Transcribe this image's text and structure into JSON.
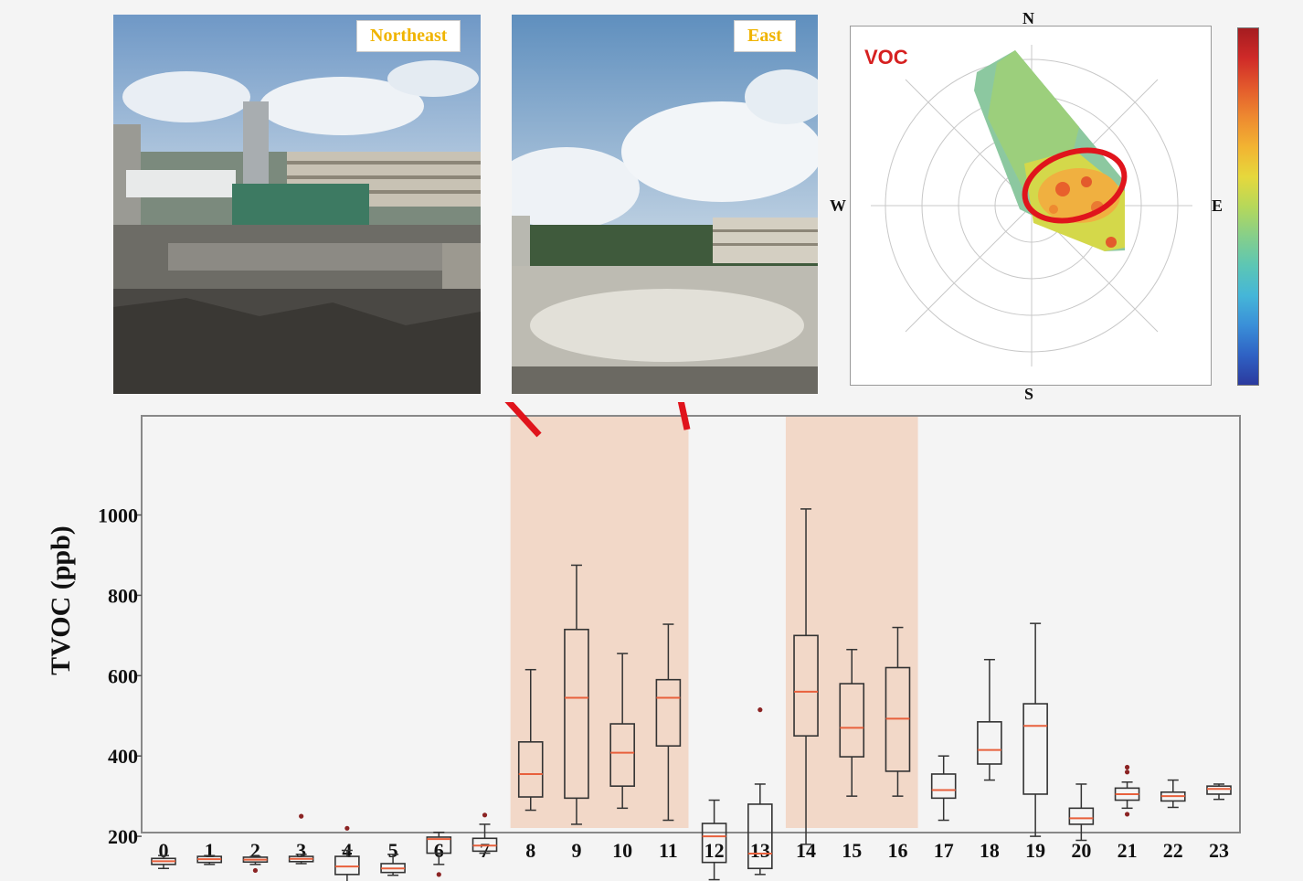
{
  "photos": [
    {
      "label": "Northeast"
    },
    {
      "label": "East"
    }
  ],
  "rose": {
    "title": "VOC",
    "compass": {
      "n": "N",
      "s": "S",
      "e": "E",
      "w": "W"
    },
    "colorbar_colors": [
      "#2b3a9e",
      "#2f62c4",
      "#3a8fd8",
      "#45b6d8",
      "#5cc6b5",
      "#86cf8a",
      "#b6d85a",
      "#e6d83c",
      "#f2b432",
      "#ee8a30",
      "#e35a2c",
      "#cf2a28",
      "#a51c20"
    ],
    "highlight_color": "#e0141c"
  },
  "chart_data": {
    "type": "box",
    "ylabel": "TVOC (ppb)",
    "yticks": [
      200,
      400,
      600,
      800,
      1000
    ],
    "ylim": [
      50,
      1080
    ],
    "categories": [
      "0",
      "1",
      "2",
      "3",
      "4",
      "5",
      "6",
      "7",
      "8",
      "9",
      "10",
      "11",
      "12",
      "13",
      "14",
      "15",
      "16",
      "17",
      "18",
      "19",
      "20",
      "21",
      "22",
      "23"
    ],
    "highlight_ranges": [
      [
        "8",
        "11"
      ],
      [
        "14",
        "16"
      ]
    ],
    "highlight_color": "#f2d8c8",
    "median_color": "#e8603c",
    "boxes": [
      {
        "hour": "0",
        "whislo": 120,
        "q1": 130,
        "med": 138,
        "q3": 145,
        "whishi": 152,
        "fliers": []
      },
      {
        "hour": "1",
        "whislo": 130,
        "q1": 135,
        "med": 143,
        "q3": 150,
        "whishi": 152,
        "fliers": []
      },
      {
        "hour": "2",
        "whislo": 130,
        "q1": 136,
        "med": 142,
        "q3": 148,
        "whishi": 150,
        "fliers": [
          115
        ]
      },
      {
        "hour": "3",
        "whislo": 132,
        "q1": 137,
        "med": 144,
        "q3": 150,
        "whishi": 155,
        "fliers": [
          250
        ]
      },
      {
        "hour": "4",
        "whislo": 78,
        "q1": 105,
        "med": 125,
        "q3": 150,
        "whishi": 165,
        "fliers": [
          220
        ]
      },
      {
        "hour": "5",
        "whislo": 103,
        "q1": 110,
        "med": 120,
        "q3": 132,
        "whishi": 155,
        "fliers": [
          78
        ]
      },
      {
        "hour": "6",
        "whislo": 130,
        "q1": 158,
        "med": 193,
        "q3": 198,
        "whishi": 210,
        "fliers": [
          105
        ]
      },
      {
        "hour": "7",
        "whislo": 158,
        "q1": 163,
        "med": 177,
        "q3": 195,
        "whishi": 230,
        "fliers": [
          253
        ]
      },
      {
        "hour": "8",
        "whislo": 265,
        "q1": 298,
        "med": 355,
        "q3": 435,
        "whishi": 615,
        "fliers": []
      },
      {
        "hour": "9",
        "whislo": 230,
        "q1": 295,
        "med": 545,
        "q3": 715,
        "whishi": 875,
        "fliers": []
      },
      {
        "hour": "10",
        "whislo": 270,
        "q1": 325,
        "med": 408,
        "q3": 480,
        "whishi": 655,
        "fliers": []
      },
      {
        "hour": "11",
        "whislo": 240,
        "q1": 425,
        "med": 545,
        "q3": 590,
        "whishi": 728,
        "fliers": []
      },
      {
        "hour": "12",
        "whislo": 92,
        "q1": 135,
        "med": 200,
        "q3": 232,
        "whishi": 290,
        "fliers": []
      },
      {
        "hour": "13",
        "whislo": 105,
        "q1": 120,
        "med": 157,
        "q3": 280,
        "whishi": 330,
        "fliers": [
          515
        ]
      },
      {
        "hour": "14",
        "whislo": 180,
        "q1": 450,
        "med": 560,
        "q3": 700,
        "whishi": 1015,
        "fliers": []
      },
      {
        "hour": "15",
        "whislo": 300,
        "q1": 398,
        "med": 470,
        "q3": 580,
        "whishi": 665,
        "fliers": []
      },
      {
        "hour": "16",
        "whislo": 300,
        "q1": 362,
        "med": 493,
        "q3": 620,
        "whishi": 720,
        "fliers": []
      },
      {
        "hour": "17",
        "whislo": 240,
        "q1": 295,
        "med": 315,
        "q3": 355,
        "whishi": 400,
        "fliers": []
      },
      {
        "hour": "18",
        "whislo": 340,
        "q1": 380,
        "med": 415,
        "q3": 485,
        "whishi": 640,
        "fliers": []
      },
      {
        "hour": "19",
        "whislo": 200,
        "q1": 305,
        "med": 475,
        "q3": 530,
        "whishi": 730,
        "fliers": []
      },
      {
        "hour": "20",
        "whislo": 190,
        "q1": 230,
        "med": 245,
        "q3": 270,
        "whishi": 330,
        "fliers": []
      },
      {
        "hour": "21",
        "whislo": 270,
        "q1": 290,
        "med": 305,
        "q3": 320,
        "whishi": 335,
        "fliers": [
          255,
          360,
          372
        ]
      },
      {
        "hour": "22",
        "whislo": 272,
        "q1": 288,
        "med": 300,
        "q3": 310,
        "whishi": 340,
        "fliers": []
      },
      {
        "hour": "23",
        "whislo": 292,
        "q1": 305,
        "med": 318,
        "q3": 325,
        "whishi": 330,
        "fliers": []
      }
    ]
  }
}
